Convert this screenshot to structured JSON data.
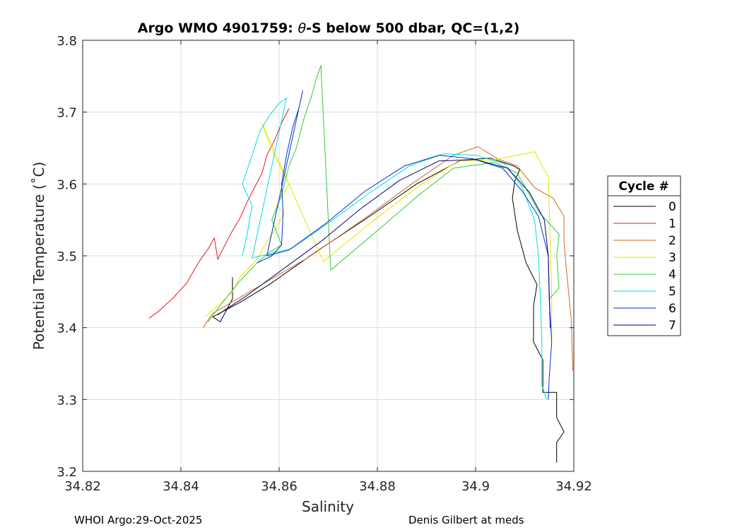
{
  "chart_data": {
    "type": "line",
    "title_prefix": "Argo WMO 4901759: ",
    "title_theta": "θ",
    "title_suffix": "-S below 500 dbar,  QC=(1,2)",
    "xlabel": "Salinity",
    "ylabel": "Potential Temperature (˚C)",
    "xlim": [
      34.82,
      34.92
    ],
    "ylim": [
      3.2,
      3.8
    ],
    "xticks": [
      34.82,
      34.84,
      34.86,
      34.88,
      34.9,
      34.92
    ],
    "xtick_labels": [
      "34.82",
      "34.84",
      "34.86",
      "34.88",
      "34.9",
      "34.92"
    ],
    "yticks": [
      3.2,
      3.3,
      3.4,
      3.5,
      3.6,
      3.7,
      3.8
    ],
    "ytick_labels": [
      "3.2",
      "3.3",
      "3.4",
      "3.5",
      "3.6",
      "3.7",
      "3.8"
    ],
    "grid": true,
    "legend_title": "Cycle #",
    "legend_position": "outside-right",
    "series": [
      {
        "name": "0",
        "color": "#000000",
        "points": [
          [
            34.9165,
            3.212
          ],
          [
            34.9165,
            3.24
          ],
          [
            34.918,
            3.255
          ],
          [
            34.9165,
            3.275
          ],
          [
            34.9165,
            3.31
          ],
          [
            34.9137,
            3.31
          ],
          [
            34.9137,
            3.355
          ],
          [
            34.9118,
            3.38
          ],
          [
            34.9118,
            3.43
          ],
          [
            34.9125,
            3.46
          ],
          [
            34.9103,
            3.49
          ],
          [
            34.9085,
            3.535
          ],
          [
            34.9075,
            3.58
          ],
          [
            34.908,
            3.605
          ],
          [
            34.909,
            3.62
          ],
          [
            34.9078,
            3.625
          ],
          [
            34.903,
            3.636
          ],
          [
            34.897,
            3.633
          ],
          [
            34.888,
            3.6
          ],
          [
            34.878,
            3.553
          ],
          [
            34.868,
            3.508
          ],
          [
            34.858,
            3.46
          ],
          [
            34.852,
            3.435
          ],
          [
            34.8465,
            3.415
          ],
          [
            34.848,
            3.408
          ],
          [
            34.8505,
            3.44
          ],
          [
            34.8505,
            3.47
          ]
        ]
      },
      {
        "name": "1",
        "color": "#e41a1c",
        "points": [
          [
            34.8335,
            3.413
          ],
          [
            34.8355,
            3.423
          ],
          [
            34.8385,
            3.442
          ],
          [
            34.8412,
            3.462
          ],
          [
            34.8425,
            3.478
          ],
          [
            34.844,
            3.495
          ],
          [
            34.8456,
            3.51
          ],
          [
            34.8468,
            3.525
          ],
          [
            34.8475,
            3.495
          ],
          [
            34.8492,
            3.518
          ],
          [
            34.8505,
            3.535
          ],
          [
            34.852,
            3.552
          ],
          [
            34.8535,
            3.575
          ],
          [
            34.855,
            3.595
          ],
          [
            34.8565,
            3.615
          ],
          [
            34.8575,
            3.64
          ],
          [
            34.859,
            3.66
          ],
          [
            34.8605,
            3.685
          ],
          [
            34.862,
            3.705
          ]
        ]
      },
      {
        "name": "2",
        "color": "#d2691e",
        "points": [
          [
            34.8445,
            3.4
          ],
          [
            34.8465,
            3.42
          ],
          [
            34.856,
            3.458
          ],
          [
            34.866,
            3.498
          ],
          [
            34.877,
            3.55
          ],
          [
            34.887,
            3.6
          ],
          [
            34.8955,
            3.64
          ],
          [
            34.9005,
            3.652
          ],
          [
            34.9045,
            3.635
          ],
          [
            34.9085,
            3.625
          ],
          [
            34.912,
            3.595
          ],
          [
            34.9158,
            3.58
          ],
          [
            34.918,
            3.555
          ],
          [
            34.918,
            3.52
          ],
          [
            34.9185,
            3.48
          ],
          [
            34.9195,
            3.41
          ],
          [
            34.9198,
            3.34
          ]
        ]
      },
      {
        "name": "3",
        "color": "#e6e600",
        "points": [
          [
            34.845,
            3.415
          ],
          [
            34.8475,
            3.43
          ],
          [
            34.8505,
            3.45
          ],
          [
            34.852,
            3.47
          ],
          [
            34.8555,
            3.495
          ],
          [
            34.8575,
            3.52
          ],
          [
            34.8595,
            3.54
          ],
          [
            34.861,
            3.56
          ],
          [
            34.8595,
            3.57
          ],
          [
            34.862,
            3.6
          ],
          [
            34.8605,
            3.62
          ],
          [
            34.859,
            3.64
          ],
          [
            34.8575,
            3.665
          ],
          [
            34.8565,
            3.685
          ],
          [
            34.869,
            3.492
          ],
          [
            34.879,
            3.548
          ],
          [
            34.889,
            3.6
          ],
          [
            34.8965,
            3.632
          ],
          [
            34.903,
            3.633
          ],
          [
            34.9085,
            3.64
          ],
          [
            34.912,
            3.645
          ],
          [
            34.9148,
            3.61
          ],
          [
            34.915,
            3.57
          ],
          [
            34.9152,
            3.51
          ],
          [
            34.9155,
            3.45
          ],
          [
            34.9155,
            3.38
          ]
        ]
      },
      {
        "name": "4",
        "color": "#33cc33",
        "points": [
          [
            34.8455,
            3.408
          ],
          [
            34.8485,
            3.435
          ],
          [
            34.852,
            3.465
          ],
          [
            34.8555,
            3.49
          ],
          [
            34.858,
            3.505
          ],
          [
            34.8605,
            3.515
          ],
          [
            34.8585,
            3.55
          ],
          [
            34.8605,
            3.585
          ],
          [
            34.862,
            3.625
          ],
          [
            34.8635,
            3.65
          ],
          [
            34.865,
            3.69
          ],
          [
            34.8665,
            3.72
          ],
          [
            34.8675,
            3.745
          ],
          [
            34.8685,
            3.765
          ],
          [
            34.8705,
            3.48
          ],
          [
            34.88,
            3.535
          ],
          [
            34.8885,
            3.585
          ],
          [
            34.8955,
            3.622
          ],
          [
            34.904,
            3.63
          ],
          [
            34.9085,
            3.615
          ],
          [
            34.913,
            3.56
          ],
          [
            34.917,
            3.53
          ],
          [
            34.9165,
            3.5
          ],
          [
            34.917,
            3.455
          ],
          [
            34.915,
            3.44
          ]
        ]
      },
      {
        "name": "5",
        "color": "#00dddd",
        "points": [
          [
            34.8525,
            3.5
          ],
          [
            34.8535,
            3.53
          ],
          [
            34.8545,
            3.57
          ],
          [
            34.8525,
            3.6
          ],
          [
            34.8545,
            3.64
          ],
          [
            34.856,
            3.672
          ],
          [
            34.858,
            3.695
          ],
          [
            34.86,
            3.712
          ],
          [
            34.8615,
            3.72
          ],
          [
            34.8545,
            3.497
          ],
          [
            34.8625,
            3.51
          ],
          [
            34.8705,
            3.548
          ],
          [
            34.8785,
            3.588
          ],
          [
            34.8865,
            3.625
          ],
          [
            34.8935,
            3.642
          ],
          [
            34.9,
            3.64
          ],
          [
            34.906,
            3.628
          ],
          [
            34.9095,
            3.595
          ],
          [
            34.912,
            3.55
          ],
          [
            34.9128,
            3.5
          ],
          [
            34.9132,
            3.44
          ],
          [
            34.9135,
            3.38
          ],
          [
            34.9135,
            3.32
          ],
          [
            34.9145,
            3.3
          ]
        ]
      },
      {
        "name": "6",
        "color": "#0033cc",
        "points": [
          [
            34.8555,
            3.49
          ],
          [
            34.8585,
            3.5
          ],
          [
            34.8605,
            3.515
          ],
          [
            34.8608,
            3.56
          ],
          [
            34.8605,
            3.6
          ],
          [
            34.8615,
            3.64
          ],
          [
            34.8628,
            3.68
          ],
          [
            34.864,
            3.705
          ],
          [
            34.8648,
            3.73
          ],
          [
            34.8575,
            3.5
          ],
          [
            34.862,
            3.508
          ],
          [
            34.8695,
            3.545
          ],
          [
            34.8775,
            3.59
          ],
          [
            34.8855,
            3.625
          ],
          [
            34.8925,
            3.64
          ],
          [
            34.8995,
            3.635
          ],
          [
            34.9055,
            3.622
          ],
          [
            34.9095,
            3.59
          ],
          [
            34.9128,
            3.555
          ],
          [
            34.9148,
            3.5
          ],
          [
            34.915,
            3.44
          ],
          [
            34.9155,
            3.38
          ],
          [
            34.915,
            3.33
          ],
          [
            34.9148,
            3.3
          ]
        ]
      },
      {
        "name": "7",
        "color": "#000080",
        "points": [
          [
            34.8475,
            3.418
          ],
          [
            34.8535,
            3.445
          ],
          [
            34.8605,
            3.48
          ],
          [
            34.8685,
            3.52
          ],
          [
            34.8765,
            3.565
          ],
          [
            34.8845,
            3.605
          ],
          [
            34.8925,
            3.632
          ],
          [
            34.9,
            3.634
          ],
          [
            34.9065,
            3.622
          ],
          [
            34.911,
            3.588
          ],
          [
            34.914,
            3.55
          ],
          [
            34.9148,
            3.5
          ],
          [
            34.915,
            3.45
          ],
          [
            34.9152,
            3.4
          ]
        ]
      }
    ]
  },
  "footer": {
    "left": "WHOI Argo:29-Oct-2025",
    "right": "Denis Gilbert at meds"
  }
}
